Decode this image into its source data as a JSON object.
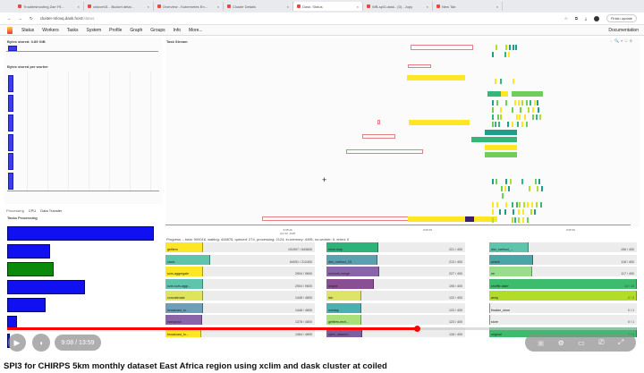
{
  "browser": {
    "tabs": [
      {
        "label": "Troubleshooting Zarr Fil..."
      },
      {
        "label": "ckluvm01 - Bucket detai..."
      },
      {
        "label": "Overview - Kubernetes En..."
      },
      {
        "label": "Cluster Details"
      },
      {
        "label": "Dask: Status",
        "active": true
      },
      {
        "label": "WB-spi3-dask.. (3) - Jupy"
      },
      {
        "label": "New Tab"
      }
    ],
    "url": "cluster-mlovq.dask.host",
    "url_path": "/status",
    "update_button": "Finish update"
  },
  "nav": {
    "items": [
      "Status",
      "Workers",
      "Tasks",
      "System",
      "Profile",
      "Graph",
      "Groups",
      "Info",
      "More..."
    ],
    "documentation": "Documentation"
  },
  "bytes_stored": {
    "title": "Bytes stored: 3.89 GiB",
    "per_worker_title": "Bytes stored per worker",
    "fraction": 0.06
  },
  "left_tabs": [
    "Processing",
    "CPU",
    "Data Transfer"
  ],
  "tasks_processing": {
    "title": "Tasks Processing",
    "bars": [
      {
        "value": 1.0,
        "color": "#1010f0"
      },
      {
        "value": 0.29,
        "color": "#1010f0"
      },
      {
        "value": 0.32,
        "color": "#0a8a0a"
      },
      {
        "value": 0.53,
        "color": "#1010f0"
      },
      {
        "value": 0.26,
        "color": "#1010f0"
      },
      {
        "value": 0.07,
        "color": "#1010f0"
      },
      {
        "value": 0.02,
        "color": "#1010f0"
      }
    ]
  },
  "task_stream": {
    "title": "Task Stream",
    "x_ticks": [
      "9:08:20",
      "9:08:25",
      "9:08:30"
    ],
    "date_label": "Apr 02, 2025"
  },
  "progress": {
    "title": "Progress -- total: 900016, waiting: 428875, queued: 274, processing: 2124, in-memory: 4495, no-worker: 0, erred: 0",
    "columns": [
      [
        {
          "name": "getitem",
          "done": 191907,
          "total": 643600,
          "color": "#fde725"
        },
        {
          "name": "stack",
          "done": 84051,
          "total": 212400,
          "color": "#5ec4ac"
        },
        {
          "name": "sum-aggregate",
          "done": 2904,
          "total": 9600,
          "color": "#fde725"
        },
        {
          "name": "sum-sum-aggr...",
          "done": 2904,
          "total": 9600,
          "color": "#5ec4ac"
        },
        {
          "name": "concatenate",
          "done": 1448,
          "total": 4800,
          "color": "#dfe55a"
        },
        {
          "name": "broadcast_to...",
          "done": 1448,
          "total": 4800,
          "color": "#6e9fb8"
        },
        {
          "name": "transpose",
          "done": 1378,
          "total": 4800,
          "color": "#8a64a8"
        },
        {
          "name": "broadcast_to...",
          "done": 1364,
          "total": 4800,
          "color": "#fde725"
        }
      ],
      [
        {
          "name": "store-map",
          "done": 221,
          "total": 400,
          "color": "#2db37a"
        },
        {
          "name": "dist_method_1D",
          "done": 213,
          "total": 400,
          "color": "#5b9fb0"
        },
        {
          "name": "rechunk-merge",
          "done": 227,
          "total": 400,
          "color": "#8a64a8"
        },
        {
          "name": "astype",
          "done": 195,
          "total": 400,
          "color": "#8a4f92"
        },
        {
          "name": "isin",
          "done": 122,
          "total": 400,
          "color": "#dde468"
        },
        {
          "name": "overlap",
          "done": 123,
          "total": 400,
          "color": "#4ab0b0"
        },
        {
          "name": "getitem-rech...",
          "done": 123,
          "total": 400,
          "color": "#a8e07a"
        },
        {
          "name": "open_dataset...",
          "done": 128,
          "total": 400,
          "color": "#7d5fa0"
        }
      ],
      [
        {
          "name": "dist_method_...",
          "done": 106,
          "total": 400,
          "color": "#5ec4ac"
        },
        {
          "name": "where",
          "done": 118,
          "total": 400,
          "color": "#4aa6a6"
        },
        {
          "name": "ne",
          "done": 117,
          "total": 400,
          "color": "#98dc8c"
        },
        {
          "name": "shuffle-taker",
          "done": 14,
          "total": 14,
          "color": "#3cbc6c"
        },
        {
          "name": "array",
          "done": 2,
          "total": 2,
          "color": "#b2dc2a"
        },
        {
          "name": "finalize_store",
          "done": 0,
          "total": 1,
          "color": "#ccc"
        },
        {
          "name": "store",
          "done": 0,
          "total": 1,
          "color": "#ccc"
        },
        {
          "name": "original",
          "done": 1,
          "total": 1,
          "color": "#3cbc6c"
        }
      ]
    ]
  },
  "video": {
    "time": "9:08 / 13:59",
    "played_fraction": 0.65,
    "title": "SPI3 for CHIRPS 5km monthly dataset East Africa region using xclim and dask cluster at coiled"
  }
}
